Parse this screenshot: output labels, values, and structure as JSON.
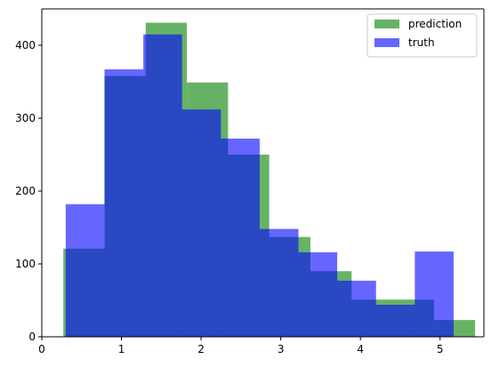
{
  "chart_data": {
    "type": "histogram",
    "xlim": [
      0,
      5.55
    ],
    "ylim": [
      0,
      450
    ],
    "xticks": [
      "0",
      "1",
      "2",
      "3",
      "4",
      "5"
    ],
    "yticks": [
      "0",
      "100",
      "200",
      "300",
      "400"
    ],
    "legend_placement": "top-right",
    "grid": false,
    "series": [
      {
        "name": "prediction",
        "color": "#008000",
        "opacity": 0.6,
        "bin_edges": [
          0.27,
          0.787,
          1.304,
          1.821,
          2.338,
          2.855,
          3.372,
          3.889,
          4.406,
          4.923,
          5.44
        ],
        "values": [
          121,
          358,
          431,
          349,
          250,
          137,
          90,
          51,
          51,
          23
        ]
      },
      {
        "name": "truth",
        "color": "#0000ff",
        "opacity": 0.6,
        "bin_edges": [
          0.3,
          0.787,
          1.274,
          1.761,
          2.248,
          2.735,
          3.222,
          3.709,
          4.196,
          4.683,
          5.17
        ],
        "values": [
          182,
          367,
          415,
          312,
          272,
          148,
          116,
          77,
          44,
          117
        ]
      }
    ]
  }
}
